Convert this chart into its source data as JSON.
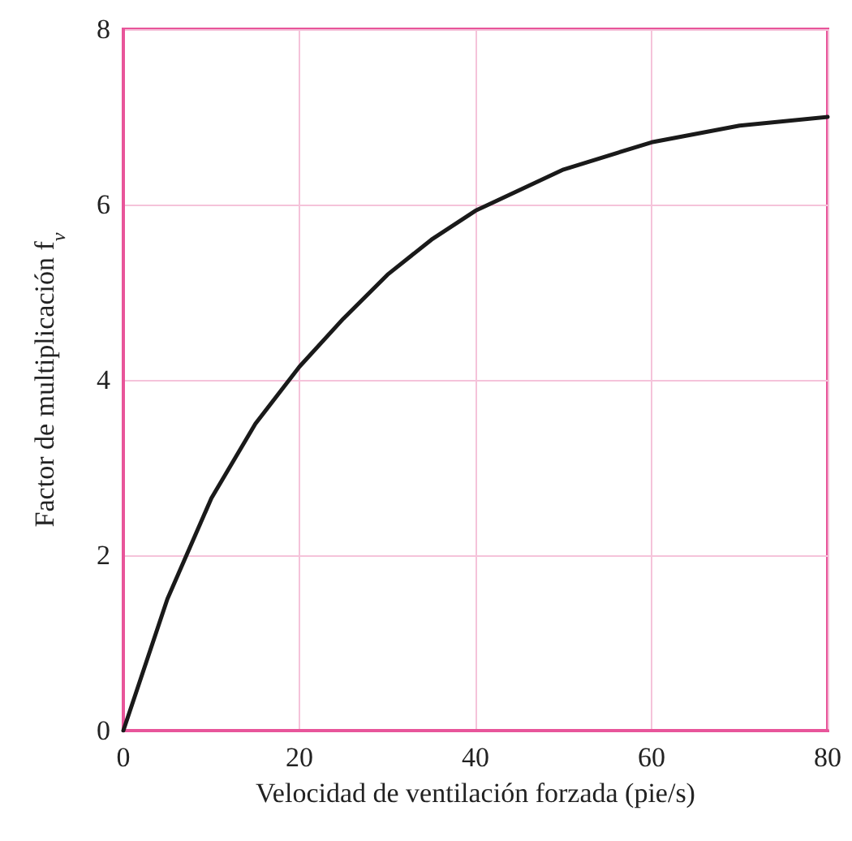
{
  "chart_data": {
    "type": "line",
    "xlabel": "Velocidad de ventilación forzada (pie/s)",
    "ylabel": "Factor de multiplicación f$_{v}$",
    "x": [
      0,
      5,
      10,
      15,
      20,
      25,
      30,
      35,
      40,
      50,
      60,
      70,
      80
    ],
    "series": [
      {
        "color": "#1a1a1a",
        "values": [
          0,
          1.5,
          2.65,
          3.5,
          4.15,
          4.7,
          5.2,
          5.6,
          5.93,
          6.4,
          6.71,
          6.9,
          7.0
        ]
      }
    ],
    "xlim": [
      0,
      80
    ],
    "xticks": [
      0,
      20,
      40,
      60,
      80
    ],
    "ylim": [
      0,
      8
    ],
    "yticks": [
      0,
      2,
      4,
      6,
      8
    ],
    "grid": true,
    "marker": "none",
    "line_style": "solid"
  }
}
